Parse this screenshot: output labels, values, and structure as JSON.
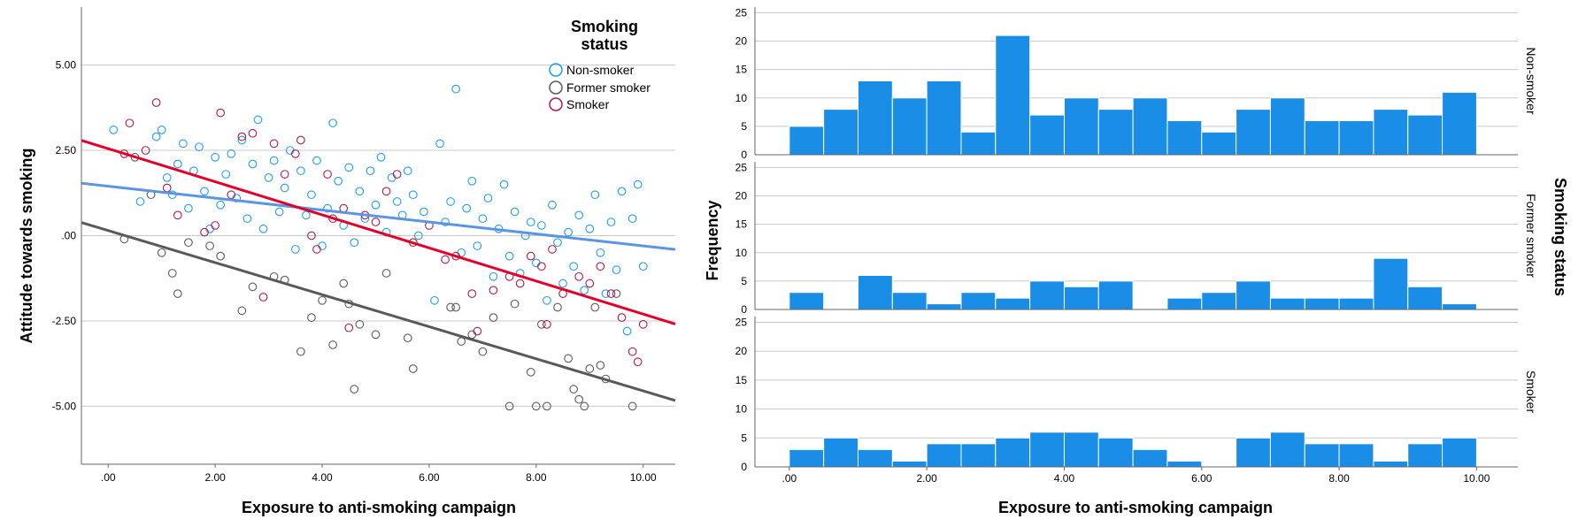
{
  "chart_data": [
    {
      "type": "scatter",
      "title": "",
      "xlabel": "Exposure to anti-smoking campaign",
      "ylabel": "Attitude towards smoking",
      "xlim": [
        -0.5,
        10.6
      ],
      "ylim": [
        -6.7,
        6.7
      ],
      "x_ticks": [
        0,
        2,
        4,
        6,
        8,
        10
      ],
      "x_tick_labels": [
        ".00",
        "2.00",
        "4.00",
        "6.00",
        "8.00",
        "10.00"
      ],
      "y_ticks": [
        5,
        2.5,
        0,
        -2.5,
        -5
      ],
      "y_tick_labels": [
        "5.00",
        "2.50",
        ".00",
        "-2.50",
        "-5.00"
      ],
      "legend_title": "Smoking status",
      "legend_title_lines": [
        "Smoking",
        "status"
      ],
      "legend_position": "top-right",
      "grid": "horizontal",
      "series": [
        {
          "name": "Non-smoker",
          "color": "#1f9ee8",
          "fit_line": {
            "intercept": 1.45,
            "slope": -0.175,
            "color": "#5b95e0"
          },
          "points": [
            [
              0.1,
              3.1
            ],
            [
              0.6,
              1.0
            ],
            [
              0.9,
              2.9
            ],
            [
              1.0,
              3.1
            ],
            [
              1.1,
              1.7
            ],
            [
              1.2,
              1.2
            ],
            [
              1.3,
              2.1
            ],
            [
              1.4,
              2.7
            ],
            [
              1.5,
              0.8
            ],
            [
              1.6,
              1.9
            ],
            [
              1.7,
              2.6
            ],
            [
              1.8,
              1.3
            ],
            [
              1.9,
              0.2
            ],
            [
              2.0,
              2.3
            ],
            [
              2.1,
              0.9
            ],
            [
              2.2,
              1.8
            ],
            [
              2.3,
              2.4
            ],
            [
              2.4,
              1.1
            ],
            [
              2.5,
              2.8
            ],
            [
              2.6,
              0.5
            ],
            [
              2.7,
              2.1
            ],
            [
              2.8,
              3.4
            ],
            [
              2.9,
              0.2
            ],
            [
              3.0,
              1.7
            ],
            [
              3.1,
              2.2
            ],
            [
              3.2,
              0.7
            ],
            [
              3.3,
              1.4
            ],
            [
              3.4,
              2.5
            ],
            [
              3.5,
              -0.4
            ],
            [
              3.6,
              1.9
            ],
            [
              3.7,
              0.6
            ],
            [
              3.8,
              1.2
            ],
            [
              3.9,
              2.2
            ],
            [
              4.0,
              -0.3
            ],
            [
              4.1,
              0.8
            ],
            [
              4.2,
              3.3
            ],
            [
              4.3,
              1.6
            ],
            [
              4.4,
              0.3
            ],
            [
              4.5,
              2.0
            ],
            [
              4.6,
              -0.2
            ],
            [
              4.7,
              1.3
            ],
            [
              4.8,
              0.5
            ],
            [
              4.9,
              1.9
            ],
            [
              5.0,
              0.9
            ],
            [
              5.1,
              2.3
            ],
            [
              5.2,
              0.1
            ],
            [
              5.3,
              1.7
            ],
            [
              5.4,
              1.0
            ],
            [
              5.5,
              0.6
            ],
            [
              5.6,
              1.9
            ],
            [
              5.7,
              1.2
            ],
            [
              5.8,
              0.0
            ],
            [
              5.9,
              0.7
            ],
            [
              6.1,
              -1.9
            ],
            [
              6.2,
              2.7
            ],
            [
              6.3,
              0.4
            ],
            [
              6.4,
              1.0
            ],
            [
              6.5,
              4.3
            ],
            [
              6.6,
              -0.5
            ],
            [
              6.7,
              0.8
            ],
            [
              6.8,
              1.6
            ],
            [
              6.9,
              -0.3
            ],
            [
              7.0,
              0.5
            ],
            [
              7.1,
              1.1
            ],
            [
              7.2,
              -1.2
            ],
            [
              7.3,
              0.2
            ],
            [
              7.4,
              1.5
            ],
            [
              7.5,
              -0.6
            ],
            [
              7.6,
              0.7
            ],
            [
              7.7,
              -1.1
            ],
            [
              7.8,
              0.0
            ],
            [
              7.9,
              0.4
            ],
            [
              8.0,
              -0.8
            ],
            [
              8.1,
              0.3
            ],
            [
              8.2,
              -1.9
            ],
            [
              8.3,
              0.9
            ],
            [
              8.4,
              -0.2
            ],
            [
              8.5,
              -1.4
            ],
            [
              8.6,
              0.1
            ],
            [
              8.7,
              -0.9
            ],
            [
              8.8,
              0.6
            ],
            [
              8.9,
              -1.6
            ],
            [
              9.0,
              0.2
            ],
            [
              9.1,
              1.2
            ],
            [
              9.2,
              -0.5
            ],
            [
              9.3,
              -1.7
            ],
            [
              9.4,
              0.4
            ],
            [
              9.5,
              -1.0
            ],
            [
              9.6,
              1.3
            ],
            [
              9.7,
              -2.8
            ],
            [
              9.8,
              0.5
            ],
            [
              9.9,
              1.5
            ],
            [
              10.0,
              -0.9
            ]
          ]
        },
        {
          "name": "Former smoker",
          "color": "#595959",
          "fit_line": {
            "intercept": 0.15,
            "slope": -0.47,
            "color": "#595959"
          },
          "points": [
            [
              0.3,
              -0.1
            ],
            [
              0.5,
              2.3
            ],
            [
              0.8,
              1.2
            ],
            [
              1.0,
              -0.5
            ],
            [
              1.2,
              -1.1
            ],
            [
              1.3,
              -1.7
            ],
            [
              1.5,
              -0.2
            ],
            [
              1.9,
              -0.3
            ],
            [
              2.1,
              -0.6
            ],
            [
              2.5,
              -2.2
            ],
            [
              2.7,
              -1.5
            ],
            [
              3.1,
              -1.2
            ],
            [
              3.3,
              -1.3
            ],
            [
              3.6,
              -3.4
            ],
            [
              3.8,
              -2.4
            ],
            [
              4.0,
              -1.9
            ],
            [
              4.2,
              -3.2
            ],
            [
              4.4,
              -1.4
            ],
            [
              4.5,
              -2.0
            ],
            [
              4.6,
              -4.5
            ],
            [
              4.7,
              -2.6
            ],
            [
              5.0,
              -2.9
            ],
            [
              5.2,
              -1.1
            ],
            [
              5.6,
              -3.0
            ],
            [
              5.7,
              -3.9
            ],
            [
              6.4,
              -2.1
            ],
            [
              6.5,
              -2.1
            ],
            [
              6.6,
              -3.1
            ],
            [
              6.8,
              -2.9
            ],
            [
              7.0,
              -3.4
            ],
            [
              7.2,
              -2.4
            ],
            [
              7.5,
              -5.0
            ],
            [
              7.6,
              -2.0
            ],
            [
              7.9,
              -4.0
            ],
            [
              8.0,
              -5.0
            ],
            [
              8.1,
              -2.6
            ],
            [
              8.2,
              -5.0
            ],
            [
              8.4,
              -2.1
            ],
            [
              8.6,
              -3.6
            ],
            [
              8.7,
              -4.5
            ],
            [
              8.8,
              -4.8
            ],
            [
              8.9,
              -5.0
            ],
            [
              9.0,
              -3.9
            ],
            [
              9.1,
              -2.1
            ],
            [
              9.2,
              -3.8
            ],
            [
              9.3,
              -4.2
            ],
            [
              9.5,
              -1.7
            ],
            [
              9.8,
              -5.0
            ]
          ]
        },
        {
          "name": "Smoker",
          "color": "#b0174d",
          "fit_line": {
            "intercept": 2.55,
            "slope": -0.485,
            "color": "#e0002a"
          },
          "points": [
            [
              0.3,
              2.4
            ],
            [
              0.4,
              3.3
            ],
            [
              0.7,
              2.5
            ],
            [
              0.9,
              3.9
            ],
            [
              1.1,
              1.4
            ],
            [
              1.3,
              0.6
            ],
            [
              1.8,
              0.1
            ],
            [
              2.0,
              0.3
            ],
            [
              2.1,
              3.6
            ],
            [
              2.3,
              1.2
            ],
            [
              2.5,
              2.9
            ],
            [
              2.7,
              3.0
            ],
            [
              2.9,
              -1.8
            ],
            [
              3.1,
              2.7
            ],
            [
              3.3,
              1.8
            ],
            [
              3.5,
              2.4
            ],
            [
              3.6,
              2.8
            ],
            [
              3.8,
              0.0
            ],
            [
              3.9,
              -0.4
            ],
            [
              4.1,
              1.8
            ],
            [
              4.2,
              0.5
            ],
            [
              4.4,
              0.8
            ],
            [
              4.5,
              -2.7
            ],
            [
              4.8,
              0.6
            ],
            [
              5.0,
              0.4
            ],
            [
              5.2,
              1.3
            ],
            [
              5.4,
              1.8
            ],
            [
              5.7,
              -0.2
            ],
            [
              6.0,
              0.3
            ],
            [
              6.3,
              -0.7
            ],
            [
              6.5,
              -0.6
            ],
            [
              6.8,
              -1.7
            ],
            [
              6.9,
              -2.8
            ],
            [
              7.2,
              -1.6
            ],
            [
              7.5,
              -1.2
            ],
            [
              7.7,
              -1.4
            ],
            [
              7.9,
              -0.6
            ],
            [
              8.1,
              -0.9
            ],
            [
              8.2,
              -2.6
            ],
            [
              8.3,
              -0.4
            ],
            [
              8.5,
              -1.7
            ],
            [
              8.8,
              -1.2
            ],
            [
              9.0,
              -1.4
            ],
            [
              9.2,
              -0.9
            ],
            [
              9.4,
              -1.7
            ],
            [
              9.6,
              -2.4
            ],
            [
              9.8,
              -3.4
            ],
            [
              9.9,
              -3.7
            ],
            [
              10.0,
              -2.6
            ]
          ]
        }
      ]
    },
    {
      "type": "bar",
      "subtype": "histogram-panels",
      "xlabel": "Exposure to anti-smoking campaign",
      "ylabel": "Frequency",
      "panel_variable_label": "Smoking status",
      "xlim": [
        -0.5,
        10.6
      ],
      "ylim": [
        0,
        26
      ],
      "x_ticks": [
        0,
        2,
        4,
        6,
        8,
        10
      ],
      "x_tick_labels": [
        ".00",
        "2.00",
        "4.00",
        "6.00",
        "8.00",
        "10.00"
      ],
      "y_ticks": [
        0,
        5,
        10,
        15,
        20,
        25
      ],
      "y_tick_labels": [
        "0",
        "5",
        "10",
        "15",
        "20",
        "25"
      ],
      "bin_start": 0,
      "bin_width": 0.5,
      "bar_color": "#1a8de6",
      "series": [
        {
          "name": "Non-smoker",
          "values": [
            5,
            8,
            13,
            10,
            13,
            4,
            21,
            7,
            10,
            8,
            10,
            6,
            4,
            8,
            10,
            6,
            6,
            8,
            7,
            11
          ]
        },
        {
          "name": "Former smoker",
          "values": [
            3,
            0,
            6,
            3,
            1,
            3,
            2,
            5,
            4,
            5,
            0,
            2,
            3,
            5,
            2,
            2,
            2,
            9,
            4,
            1
          ]
        },
        {
          "name": "Smoker",
          "values": [
            3,
            5,
            3,
            1,
            4,
            4,
            5,
            6,
            6,
            5,
            3,
            1,
            0,
            5,
            6,
            4,
            4,
            1,
            4,
            5
          ]
        }
      ]
    }
  ]
}
